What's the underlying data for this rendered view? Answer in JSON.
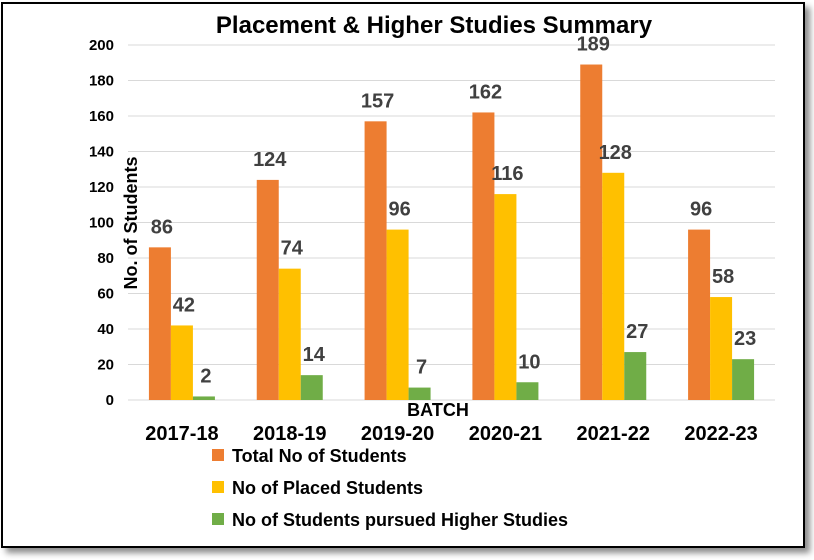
{
  "chart_data": {
    "type": "bar",
    "title": "Placement & Higher Studies Summary",
    "xlabel": "BATCH",
    "ylabel": "No. of  Students",
    "ylim": [
      0,
      200
    ],
    "yticks": [
      0,
      20,
      40,
      60,
      80,
      100,
      120,
      140,
      160,
      180,
      200
    ],
    "categories": [
      "2017-18",
      "2018-19",
      "2019-20",
      "2020-21",
      "2021-22",
      "2022-23"
    ],
    "series": [
      {
        "name": "Total No of Students",
        "color": "#ed7d31",
        "values": [
          86,
          124,
          157,
          162,
          189,
          96
        ]
      },
      {
        "name": "No of Placed Students",
        "color": "#ffc000",
        "values": [
          42,
          74,
          96,
          116,
          128,
          58
        ]
      },
      {
        "name": "No of Students  pursued Higher Studies",
        "color": "#70ad47",
        "values": [
          2,
          14,
          7,
          10,
          27,
          23
        ]
      }
    ],
    "grid": true,
    "legend_position": "bottom"
  }
}
